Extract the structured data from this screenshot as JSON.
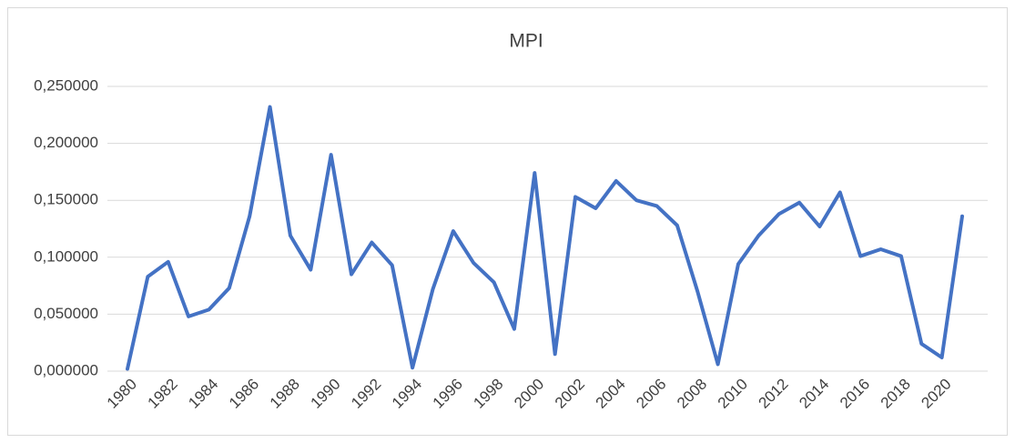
{
  "chart_data": {
    "type": "line",
    "title": "MPI",
    "categories": [
      "1980",
      null,
      "1982",
      null,
      "1984",
      null,
      "1986",
      null,
      "1988",
      null,
      "1990",
      null,
      "1992",
      null,
      "1994",
      null,
      "1996",
      null,
      "1998",
      null,
      "2000",
      null,
      "2002",
      null,
      "2004",
      null,
      "2006",
      null,
      "2008",
      null,
      "2010",
      null,
      "2012",
      null,
      "2014",
      null,
      "2016",
      null,
      "2018",
      null,
      "2020",
      null
    ],
    "values": [
      0.002,
      0.083,
      0.096,
      0.048,
      0.054,
      0.073,
      0.136,
      0.232,
      0.119,
      0.089,
      0.19,
      0.085,
      0.113,
      0.093,
      0.003,
      0.072,
      0.123,
      0.095,
      0.078,
      0.037,
      0.174,
      0.015,
      0.153,
      0.143,
      0.167,
      0.15,
      0.145,
      0.128,
      0.07,
      0.006,
      0.094,
      0.119,
      0.138,
      0.148,
      0.127,
      0.157,
      0.101,
      0.107,
      0.101,
      0.024,
      0.012,
      0.136
    ],
    "color": "#4472c4",
    "ylim": [
      0,
      0.25
    ],
    "yticks": [
      {
        "value": 0,
        "label": "0,000000"
      },
      {
        "value": 0.05,
        "label": "0,050000"
      },
      {
        "value": 0.1,
        "label": "0,100000"
      },
      {
        "value": 0.15,
        "label": "0,150000"
      },
      {
        "value": 0.2,
        "label": "0,200000"
      },
      {
        "value": 0.25,
        "label": "0,250000"
      }
    ],
    "grid": true
  }
}
